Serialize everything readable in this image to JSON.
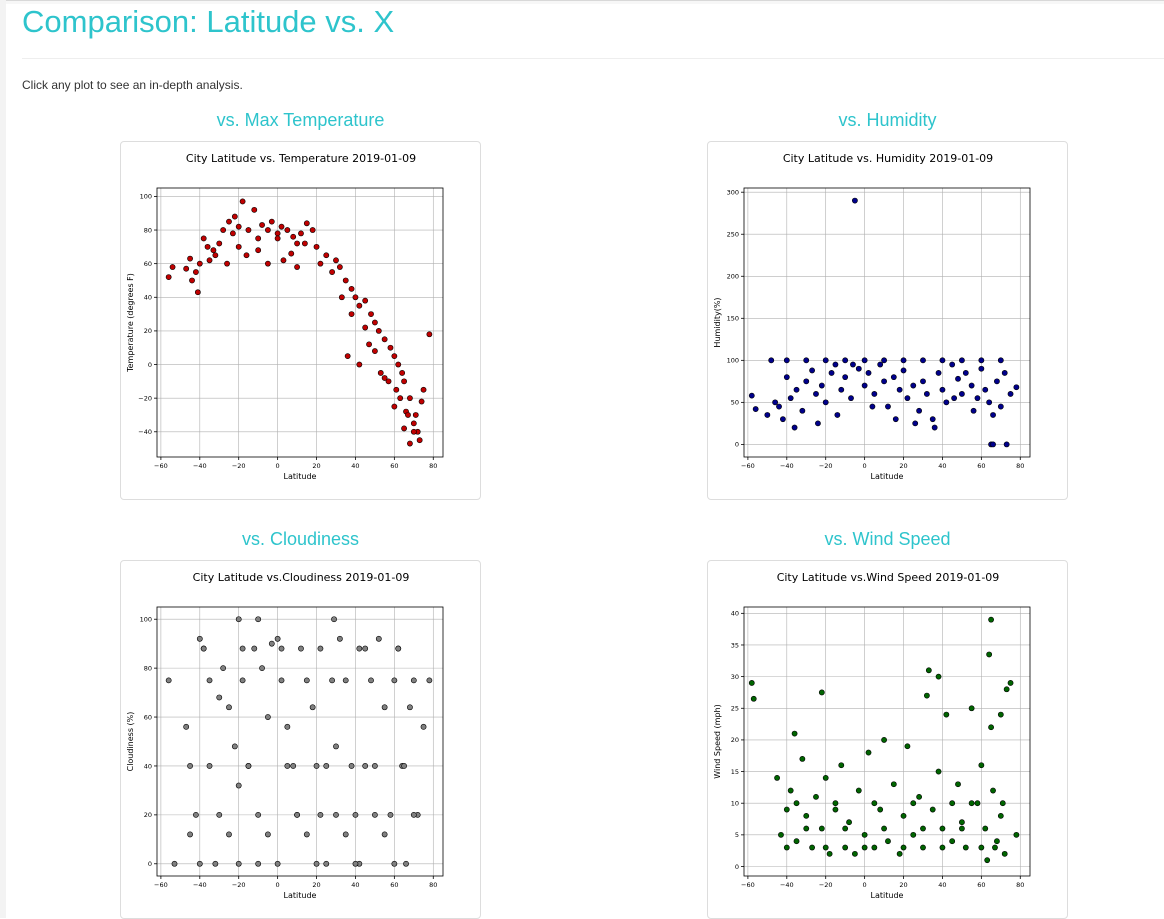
{
  "page": {
    "title": "Comparison: Latitude vs. X",
    "intro": "Click any plot to see an in-depth analysis."
  },
  "colors": {
    "accent": "#2ec4cc"
  },
  "sections": [
    {
      "heading": "vs. Max Temperature"
    },
    {
      "heading": "vs. Humidity"
    },
    {
      "heading": "vs. Cloudiness"
    },
    {
      "heading": "vs. Wind Speed"
    }
  ],
  "chart_data": [
    {
      "type": "scatter",
      "title": "City Latitude vs. Temperature  2019-01-09",
      "xlabel": "Latitude",
      "ylabel": "Temperature (degrees F)",
      "xlim": [
        -62,
        85
      ],
      "ylim": [
        -55,
        105
      ],
      "xticks": [
        -60,
        -40,
        -20,
        0,
        20,
        40,
        60,
        80
      ],
      "yticks": [
        -40,
        -20,
        0,
        20,
        40,
        60,
        80,
        100
      ],
      "grid": true,
      "marker_color": "#c00000",
      "x": [
        -56,
        -54,
        -47,
        -45,
        -42,
        -40,
        -38,
        -35,
        -33,
        -30,
        -28,
        -25,
        -22,
        -20,
        -18,
        -15,
        -12,
        -10,
        -8,
        -5,
        -3,
        0,
        2,
        5,
        8,
        10,
        12,
        15,
        18,
        20,
        22,
        25,
        28,
        30,
        32,
        35,
        38,
        40,
        42,
        45,
        48,
        50,
        52,
        55,
        58,
        60,
        62,
        64,
        65,
        66,
        68,
        70,
        72,
        75,
        78,
        -20,
        -23,
        -16,
        -10,
        -5,
        0,
        3,
        7,
        10,
        14,
        -36,
        -32,
        -44,
        -41,
        -26,
        33,
        38,
        45,
        50,
        53,
        57,
        61,
        63,
        67,
        70,
        73,
        36,
        42,
        47,
        55,
        60,
        65,
        68,
        71,
        74
      ],
      "y": [
        52,
        58,
        57,
        63,
        55,
        60,
        75,
        62,
        68,
        72,
        80,
        85,
        88,
        82,
        97,
        80,
        92,
        75,
        83,
        80,
        85,
        78,
        82,
        80,
        76,
        72,
        78,
        84,
        80,
        70,
        60,
        65,
        55,
        62,
        58,
        50,
        45,
        40,
        35,
        38,
        30,
        25,
        20,
        15,
        10,
        5,
        0,
        -5,
        -10,
        -28,
        -20,
        -35,
        -40,
        -15,
        18,
        70,
        78,
        65,
        68,
        60,
        75,
        62,
        66,
        58,
        72,
        70,
        65,
        50,
        43,
        60,
        40,
        30,
        22,
        8,
        -5,
        -10,
        -15,
        -20,
        -30,
        -40,
        -45,
        5,
        0,
        12,
        -8,
        -25,
        -38,
        -47,
        -30,
        -22
      ]
    },
    {
      "type": "scatter",
      "title": "City Latitude vs. Humidity 2019-01-09",
      "xlabel": "Latitude",
      "ylabel": "Humidity(%)",
      "xlim": [
        -62,
        85
      ],
      "ylim": [
        -15,
        305
      ],
      "xticks": [
        -60,
        -40,
        -20,
        0,
        20,
        40,
        60,
        80
      ],
      "yticks": [
        0,
        50,
        100,
        150,
        200,
        250,
        300
      ],
      "grid": true,
      "marker_color": "#00008b",
      "x": [
        -58,
        -56,
        -50,
        -46,
        -44,
        -42,
        -40,
        -38,
        -35,
        -32,
        -30,
        -27,
        -25,
        -22,
        -20,
        -17,
        -15,
        -12,
        -10,
        -7,
        -5,
        -3,
        0,
        2,
        5,
        8,
        10,
        12,
        15,
        18,
        20,
        22,
        25,
        28,
        30,
        32,
        35,
        38,
        40,
        42,
        45,
        48,
        50,
        52,
        55,
        58,
        60,
        62,
        64,
        65,
        66,
        68,
        70,
        72,
        75,
        78,
        -6,
        -48,
        -40,
        -30,
        -20,
        -10,
        0,
        10,
        20,
        30,
        40,
        50,
        60,
        70,
        -36,
        -24,
        -14,
        4,
        16,
        26,
        36,
        46,
        56,
        66,
        73
      ],
      "y": [
        58,
        42,
        35,
        50,
        45,
        30,
        80,
        55,
        65,
        40,
        75,
        88,
        60,
        70,
        50,
        85,
        95,
        65,
        80,
        55,
        290,
        90,
        70,
        85,
        60,
        95,
        75,
        45,
        80,
        65,
        88,
        55,
        70,
        40,
        75,
        60,
        30,
        85,
        65,
        50,
        95,
        78,
        60,
        85,
        70,
        55,
        90,
        65,
        50,
        0,
        0,
        75,
        45,
        85,
        60,
        68,
        95,
        100,
        100,
        100,
        100,
        100,
        100,
        100,
        100,
        100,
        100,
        100,
        100,
        100,
        20,
        25,
        35,
        45,
        30,
        25,
        20,
        55,
        40,
        35,
        0
      ]
    },
    {
      "type": "scatter",
      "title": "City Latitude vs.Cloudiness 2019-01-09",
      "xlabel": "Latitude",
      "ylabel": "Cloudiness (%)",
      "xlim": [
        -62,
        85
      ],
      "ylim": [
        -5,
        105
      ],
      "xticks": [
        -60,
        -40,
        -20,
        0,
        20,
        40,
        60,
        80
      ],
      "yticks": [
        0,
        20,
        40,
        60,
        80,
        100
      ],
      "grid": true,
      "marker_color": "#808080",
      "x": [
        -56,
        -53,
        -47,
        -45,
        -42,
        -40,
        -38,
        -35,
        -32,
        -30,
        -28,
        -25,
        -22,
        -20,
        -18,
        -15,
        -12,
        -10,
        -8,
        -5,
        -3,
        0,
        2,
        5,
        8,
        10,
        12,
        15,
        18,
        20,
        22,
        25,
        28,
        30,
        32,
        35,
        38,
        40,
        42,
        45,
        48,
        50,
        52,
        55,
        58,
        60,
        62,
        64,
        66,
        68,
        70,
        72,
        75,
        78,
        -20,
        -10,
        29,
        -40,
        -20,
        0,
        20,
        40,
        60,
        -35,
        -15,
        5,
        25,
        45,
        65,
        -30,
        -10,
        10,
        30,
        50,
        70,
        -45,
        -25,
        -5,
        15,
        35,
        55,
        -38,
        -18,
        2,
        22,
        42,
        62
      ],
      "y": [
        75,
        0,
        56,
        40,
        20,
        92,
        88,
        75,
        0,
        68,
        80,
        64,
        48,
        100,
        75,
        40,
        88,
        100,
        80,
        60,
        90,
        92,
        75,
        56,
        40,
        20,
        88,
        75,
        64,
        40,
        20,
        0,
        75,
        48,
        92,
        75,
        40,
        20,
        0,
        88,
        75,
        40,
        92,
        64,
        20,
        75,
        88,
        40,
        0,
        64,
        75,
        20,
        56,
        75,
        32,
        0,
        100,
        0,
        0,
        0,
        0,
        0,
        0,
        40,
        40,
        40,
        40,
        40,
        40,
        20,
        20,
        20,
        20,
        20,
        20,
        12,
        12,
        12,
        12,
        12,
        12,
        88,
        88,
        88,
        88,
        88,
        88
      ]
    },
    {
      "type": "scatter",
      "title": "City Latitude vs.Wind Speed 2019-01-09",
      "xlabel": "Latitude",
      "ylabel": "Wind Speed (mph)",
      "xlim": [
        -62,
        85
      ],
      "ylim": [
        -1.5,
        41
      ],
      "xticks": [
        -60,
        -40,
        -20,
        0,
        20,
        40,
        60,
        80
      ],
      "yticks": [
        0,
        5,
        10,
        15,
        20,
        25,
        30,
        35,
        40
      ],
      "grid": true,
      "marker_color": "#006400",
      "x": [
        -58,
        -57,
        -45,
        -43,
        -40,
        -38,
        -35,
        -32,
        -30,
        -27,
        -25,
        -22,
        -20,
        -18,
        -15,
        -12,
        -10,
        -8,
        -5,
        -3,
        0,
        2,
        5,
        8,
        10,
        12,
        15,
        18,
        20,
        22,
        25,
        28,
        30,
        32,
        35,
        38,
        40,
        42,
        45,
        48,
        50,
        52,
        55,
        58,
        60,
        62,
        64,
        65,
        66,
        68,
        70,
        72,
        75,
        78,
        -22,
        -36,
        33,
        38,
        65,
        70,
        73,
        -40,
        -20,
        0,
        20,
        40,
        60,
        -30,
        -10,
        10,
        30,
        50,
        -35,
        -15,
        5,
        25,
        45,
        55,
        63,
        67,
        71
      ],
      "y": [
        29,
        26.5,
        14,
        5,
        9,
        12,
        4,
        17,
        8,
        3,
        11,
        6,
        14,
        2,
        9,
        16,
        3,
        7,
        2,
        12,
        5,
        18,
        3,
        9,
        20,
        4,
        13,
        2,
        8,
        19,
        5,
        11,
        3,
        27,
        9,
        15,
        6,
        24,
        4,
        13,
        7,
        3,
        25,
        10,
        16,
        6,
        33.5,
        39,
        12,
        4,
        8,
        2,
        29,
        5,
        27.5,
        21,
        31,
        30,
        22,
        24,
        28,
        3,
        3,
        3,
        3,
        3,
        3,
        6,
        6,
        6,
        6,
        6,
        10,
        10,
        10,
        10,
        10,
        10,
        1,
        3,
        10
      ]
    }
  ]
}
